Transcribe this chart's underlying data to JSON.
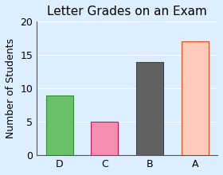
{
  "title": "Letter Grades on an Exam",
  "xlabel": "",
  "ylabel": "Number of Students",
  "categories": [
    "D",
    "C",
    "B",
    "A"
  ],
  "values": [
    9,
    5,
    14,
    17
  ],
  "bar_colors": [
    "#6abf69",
    "#f48fb1",
    "#616161",
    "#ffccbc"
  ],
  "bar_edge_colors": [
    "#388e3c",
    "#c2185b",
    "#424242",
    "#e64a19"
  ],
  "ylim": [
    0,
    20
  ],
  "yticks": [
    0,
    5,
    10,
    15,
    20
  ],
  "background_color": "#ddeeff",
  "title_fontsize": 11,
  "axis_fontsize": 9,
  "tick_fontsize": 9
}
